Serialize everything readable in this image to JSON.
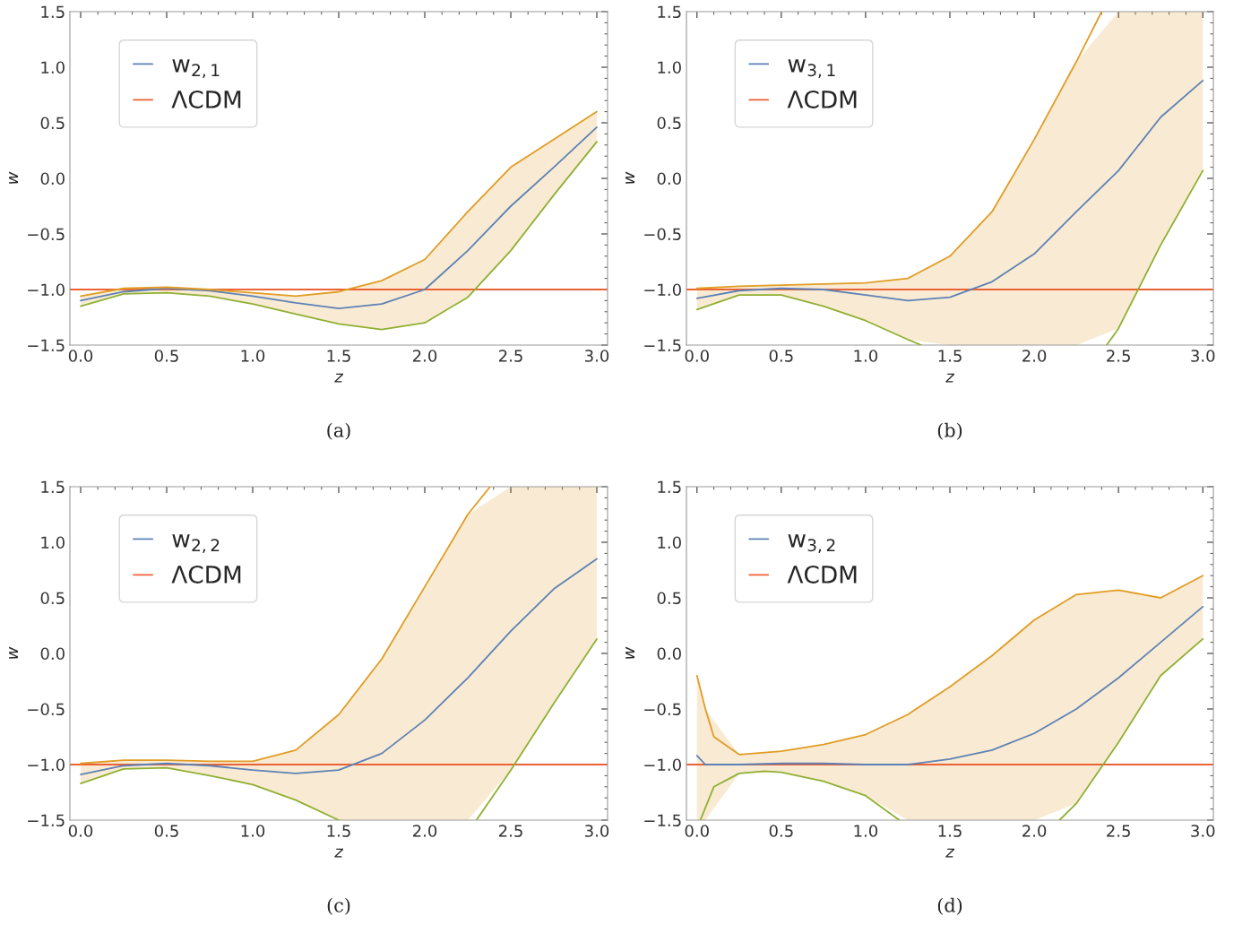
{
  "chart_data": [
    {
      "type": "line",
      "xlabel": "z",
      "ylabel": "w",
      "annotations": [
        "(a)"
      ],
      "legend": "top left",
      "grid": false,
      "xlim": [
        -0.0625,
        3.0625
      ],
      "ylim": [
        -1.5,
        1.5
      ],
      "xticks": [
        {
          "value": 0,
          "label": "0.0"
        },
        {
          "value": 0.5,
          "label": "0.5"
        },
        {
          "value": 1,
          "label": "1.0"
        },
        {
          "value": 1.5,
          "label": "1.5"
        },
        {
          "value": 2,
          "label": "2.0"
        },
        {
          "value": 2.5,
          "label": "2.5"
        },
        {
          "value": 3,
          "label": "3.0"
        }
      ],
      "yticks": [
        {
          "value": -1.5,
          "label": "−1.5"
        },
        {
          "value": -1,
          "label": "−1.0"
        },
        {
          "value": -0.5,
          "label": "−0.5"
        },
        {
          "value": 0,
          "label": "0.0"
        },
        {
          "value": 0.5,
          "label": "0.5"
        },
        {
          "value": 1,
          "label": "1.0"
        },
        {
          "value": 1.5,
          "label": "1.5"
        }
      ],
      "ref_lines": [
        {
          "axis": "y",
          "value": -1,
          "label": "ΛCDM",
          "color": "#eb6235"
        }
      ],
      "series": [
        {
          "name": "w$_{2,1}$",
          "color": "#5e81b5",
          "x": [
            0,
            0.25,
            0.5,
            0.75,
            1.0,
            1.25,
            1.5,
            1.75,
            2.0,
            2.25,
            2.5,
            2.75,
            3.0
          ],
          "values": [
            -1.1,
            -1.02,
            -0.99,
            -1.01,
            -1.06,
            -1.12,
            -1.17,
            -1.13,
            -1.0,
            -0.65,
            -0.25,
            0.1,
            0.46
          ],
          "lower": [
            -1.15,
            -1.04,
            -1.03,
            -1.06,
            -1.13,
            -1.22,
            -1.31,
            -1.36,
            -1.3,
            -1.07,
            -0.65,
            -0.15,
            0.33
          ],
          "upper": [
            -1.06,
            -0.99,
            -0.98,
            -1.0,
            -1.03,
            -1.06,
            -1.02,
            -0.92,
            -0.73,
            -0.3,
            0.1,
            0.35,
            0.6
          ]
        },
        {
          "color": "#e19c24",
          "x": [
            0,
            0.25,
            0.5,
            0.75,
            1.0,
            1.25,
            1.5,
            1.75,
            2.0,
            2.25,
            2.5,
            2.75,
            3.0
          ],
          "values": [
            -1.06,
            -0.99,
            -0.98,
            -1.0,
            -1.03,
            -1.06,
            -1.02,
            -0.92,
            -0.73,
            -0.3,
            0.1,
            0.35,
            0.6
          ]
        },
        {
          "color": "#8fb032",
          "x": [
            0,
            0.25,
            0.5,
            0.75,
            1.0,
            1.25,
            1.5,
            1.75,
            2.0,
            2.25,
            2.5,
            2.75,
            3.0
          ],
          "values": [
            -1.15,
            -1.04,
            -1.03,
            -1.06,
            -1.13,
            -1.22,
            -1.31,
            -1.36,
            -1.3,
            -1.07,
            -0.65,
            -0.15,
            0.33
          ]
        }
      ]
    },
    {
      "type": "line",
      "xlabel": "z",
      "ylabel": "w",
      "annotations": [
        "(b)"
      ],
      "legend": "top left",
      "grid": false,
      "xlim": [
        -0.0625,
        3.0625
      ],
      "ylim": [
        -1.5,
        1.5
      ],
      "xticks": [
        {
          "value": 0,
          "label": "0.0"
        },
        {
          "value": 0.5,
          "label": "0.5"
        },
        {
          "value": 1,
          "label": "1.0"
        },
        {
          "value": 1.5,
          "label": "1.5"
        },
        {
          "value": 2,
          "label": "2.0"
        },
        {
          "value": 2.5,
          "label": "2.5"
        },
        {
          "value": 3,
          "label": "3.0"
        }
      ],
      "yticks": [
        {
          "value": -1.5,
          "label": "−1.5"
        },
        {
          "value": -1,
          "label": "−1.0"
        },
        {
          "value": -0.5,
          "label": "−0.5"
        },
        {
          "value": 0,
          "label": "0.0"
        },
        {
          "value": 0.5,
          "label": "0.5"
        },
        {
          "value": 1,
          "label": "1.0"
        },
        {
          "value": 1.5,
          "label": "1.5"
        }
      ],
      "ref_lines": [
        {
          "axis": "y",
          "value": -1,
          "label": "ΛCDM",
          "color": "#eb6235"
        }
      ],
      "series": [
        {
          "name": "w$_{3,1}$",
          "color": "#5e81b5",
          "x": [
            0,
            0.25,
            0.5,
            0.75,
            1.0,
            1.25,
            1.5,
            1.75,
            2.0,
            2.25,
            2.5,
            2.75,
            3.0
          ],
          "values": [
            -1.08,
            -1.01,
            -0.99,
            -1.0,
            -1.05,
            -1.1,
            -1.07,
            -0.93,
            -0.68,
            -0.3,
            0.07,
            0.55,
            0.88
          ],
          "lower": [
            -1.18,
            -1.05,
            -1.05,
            -1.15,
            -1.28,
            -1.45,
            -1.5,
            -1.5,
            -1.5,
            -1.5,
            -1.35,
            -0.6,
            0.07
          ],
          "upper": [
            -0.99,
            -0.97,
            -0.96,
            -0.95,
            -0.94,
            -0.9,
            -0.7,
            -0.3,
            0.35,
            1.05,
            1.5,
            1.5,
            1.5
          ]
        },
        {
          "color": "#e19c24",
          "x": [
            0,
            0.25,
            0.5,
            0.75,
            1.0,
            1.25,
            1.5,
            1.75,
            2.0,
            2.25,
            2.4
          ],
          "values": [
            -0.99,
            -0.97,
            -0.96,
            -0.95,
            -0.94,
            -0.9,
            -0.7,
            -0.3,
            0.35,
            1.05,
            1.5
          ]
        },
        {
          "color": "#8fb032",
          "x": [
            0,
            0.25,
            0.5,
            0.75,
            1.0,
            1.25,
            1.33,
            2.0,
            2.43,
            2.5,
            2.75,
            3.0
          ],
          "values": [
            -1.18,
            -1.05,
            -1.05,
            -1.15,
            -1.28,
            -1.45,
            -1.5,
            null,
            -1.5,
            -1.35,
            -0.6,
            0.07
          ]
        }
      ]
    },
    {
      "type": "line",
      "xlabel": "z",
      "ylabel": "w",
      "annotations": [
        "(c)"
      ],
      "legend": "top left",
      "grid": false,
      "xlim": [
        -0.0625,
        3.0625
      ],
      "ylim": [
        -1.5,
        1.5
      ],
      "xticks": [
        {
          "value": 0,
          "label": "0.0"
        },
        {
          "value": 0.5,
          "label": "0.5"
        },
        {
          "value": 1,
          "label": "1.0"
        },
        {
          "value": 1.5,
          "label": "1.5"
        },
        {
          "value": 2,
          "label": "2.0"
        },
        {
          "value": 2.5,
          "label": "2.5"
        },
        {
          "value": 3,
          "label": "3.0"
        }
      ],
      "yticks": [
        {
          "value": -1.5,
          "label": "−1.5"
        },
        {
          "value": -1,
          "label": "−1.0"
        },
        {
          "value": -0.5,
          "label": "−0.5"
        },
        {
          "value": 0,
          "label": "0.0"
        },
        {
          "value": 0.5,
          "label": "0.5"
        },
        {
          "value": 1,
          "label": "1.0"
        },
        {
          "value": 1.5,
          "label": "1.5"
        }
      ],
      "ref_lines": [
        {
          "axis": "y",
          "value": -1,
          "label": "ΛCDM",
          "color": "#eb6235"
        }
      ],
      "series": [
        {
          "name": "w$_{2,2}$",
          "color": "#5e81b5",
          "x": [
            0,
            0.25,
            0.5,
            0.75,
            1.0,
            1.25,
            1.5,
            1.75,
            2.0,
            2.25,
            2.5,
            2.75,
            3.0
          ],
          "values": [
            -1.09,
            -1.01,
            -0.99,
            -1.01,
            -1.05,
            -1.08,
            -1.05,
            -0.9,
            -0.6,
            -0.22,
            0.2,
            0.58,
            0.85
          ],
          "lower": [
            -1.17,
            -1.04,
            -1.03,
            -1.1,
            -1.18,
            -1.32,
            -1.5,
            -1.5,
            -1.5,
            -1.5,
            -1.05,
            -0.45,
            0.13
          ],
          "upper": [
            -0.99,
            -0.96,
            -0.96,
            -0.97,
            -0.97,
            -0.87,
            -0.55,
            -0.05,
            0.6,
            1.25,
            1.5,
            1.5,
            1.5
          ]
        },
        {
          "color": "#e19c24",
          "x": [
            0,
            0.25,
            0.5,
            0.75,
            1.0,
            1.25,
            1.5,
            1.75,
            2.0,
            2.25,
            2.38
          ],
          "values": [
            -0.99,
            -0.96,
            -0.96,
            -0.97,
            -0.97,
            -0.87,
            -0.55,
            -0.05,
            0.6,
            1.25,
            1.5
          ]
        },
        {
          "color": "#8fb032",
          "x": [
            0,
            0.25,
            0.5,
            0.75,
            1.0,
            1.25,
            1.5,
            2.0,
            2.3,
            2.5,
            2.75,
            3.0
          ],
          "values": [
            -1.17,
            -1.04,
            -1.03,
            -1.1,
            -1.18,
            -1.32,
            -1.5,
            null,
            -1.5,
            -1.05,
            -0.45,
            0.13
          ]
        }
      ]
    },
    {
      "type": "line",
      "xlabel": "z",
      "ylabel": "w",
      "annotations": [
        "(d)"
      ],
      "legend": "top left",
      "grid": false,
      "xlim": [
        -0.0625,
        3.0625
      ],
      "ylim": [
        -1.5,
        1.5
      ],
      "xticks": [
        {
          "value": 0,
          "label": "0.0"
        },
        {
          "value": 0.5,
          "label": "0.5"
        },
        {
          "value": 1,
          "label": "1.0"
        },
        {
          "value": 1.5,
          "label": "1.5"
        },
        {
          "value": 2,
          "label": "2.0"
        },
        {
          "value": 2.5,
          "label": "2.5"
        },
        {
          "value": 3,
          "label": "3.0"
        }
      ],
      "yticks": [
        {
          "value": -1.5,
          "label": "−1.5"
        },
        {
          "value": -1,
          "label": "−1.0"
        },
        {
          "value": -0.5,
          "label": "−0.5"
        },
        {
          "value": 0,
          "label": "0.0"
        },
        {
          "value": 0.5,
          "label": "0.5"
        },
        {
          "value": 1,
          "label": "1.0"
        },
        {
          "value": 1.5,
          "label": "1.5"
        }
      ],
      "ref_lines": [
        {
          "axis": "y",
          "value": -1,
          "label": "ΛCDM",
          "color": "#eb6235"
        }
      ],
      "series": [
        {
          "name": "w$_{3,2}$",
          "color": "#5e81b5",
          "x": [
            0,
            0.05,
            0.25,
            0.5,
            0.75,
            1.0,
            1.25,
            1.5,
            1.75,
            2.0,
            2.25,
            2.5,
            2.75,
            3.0
          ],
          "values": [
            -0.92,
            -1.0,
            -1.0,
            -0.99,
            -0.99,
            -1.0,
            -1.0,
            -0.95,
            -0.87,
            -0.72,
            -0.5,
            -0.22,
            0.1,
            0.42
          ],
          "lower": [
            -1.5,
            -1.5,
            -1.08,
            -1.07,
            -1.15,
            -1.28,
            -1.5,
            -1.5,
            -1.5,
            -1.5,
            -1.35,
            -0.8,
            -0.2,
            0.13
          ],
          "upper": [
            -0.2,
            -0.5,
            -0.91,
            -0.88,
            -0.82,
            -0.73,
            -0.55,
            -0.3,
            -0.02,
            0.3,
            0.53,
            0.57,
            0.5,
            0.7
          ]
        },
        {
          "color": "#e19c24",
          "x": [
            0,
            0.05,
            0.1,
            0.25,
            0.5,
            0.75,
            1.0,
            1.25,
            1.5,
            1.75,
            2.0,
            2.25,
            2.5,
            2.75,
            3.0
          ],
          "values": [
            -0.2,
            -0.5,
            -0.75,
            -0.91,
            -0.88,
            -0.82,
            -0.73,
            -0.55,
            -0.3,
            -0.02,
            0.3,
            0.53,
            0.57,
            0.5,
            0.7
          ]
        },
        {
          "color": "#8fb032",
          "x": [
            0.02,
            0.1,
            0.25,
            0.4,
            0.5,
            0.75,
            1.0,
            1.2,
            1.7,
            2.15,
            2.25,
            2.5,
            2.75,
            3.0
          ],
          "values": [
            -1.5,
            -1.2,
            -1.08,
            -1.06,
            -1.07,
            -1.15,
            -1.28,
            -1.5,
            null,
            -1.5,
            -1.35,
            -0.8,
            -0.2,
            0.13
          ]
        }
      ]
    }
  ]
}
